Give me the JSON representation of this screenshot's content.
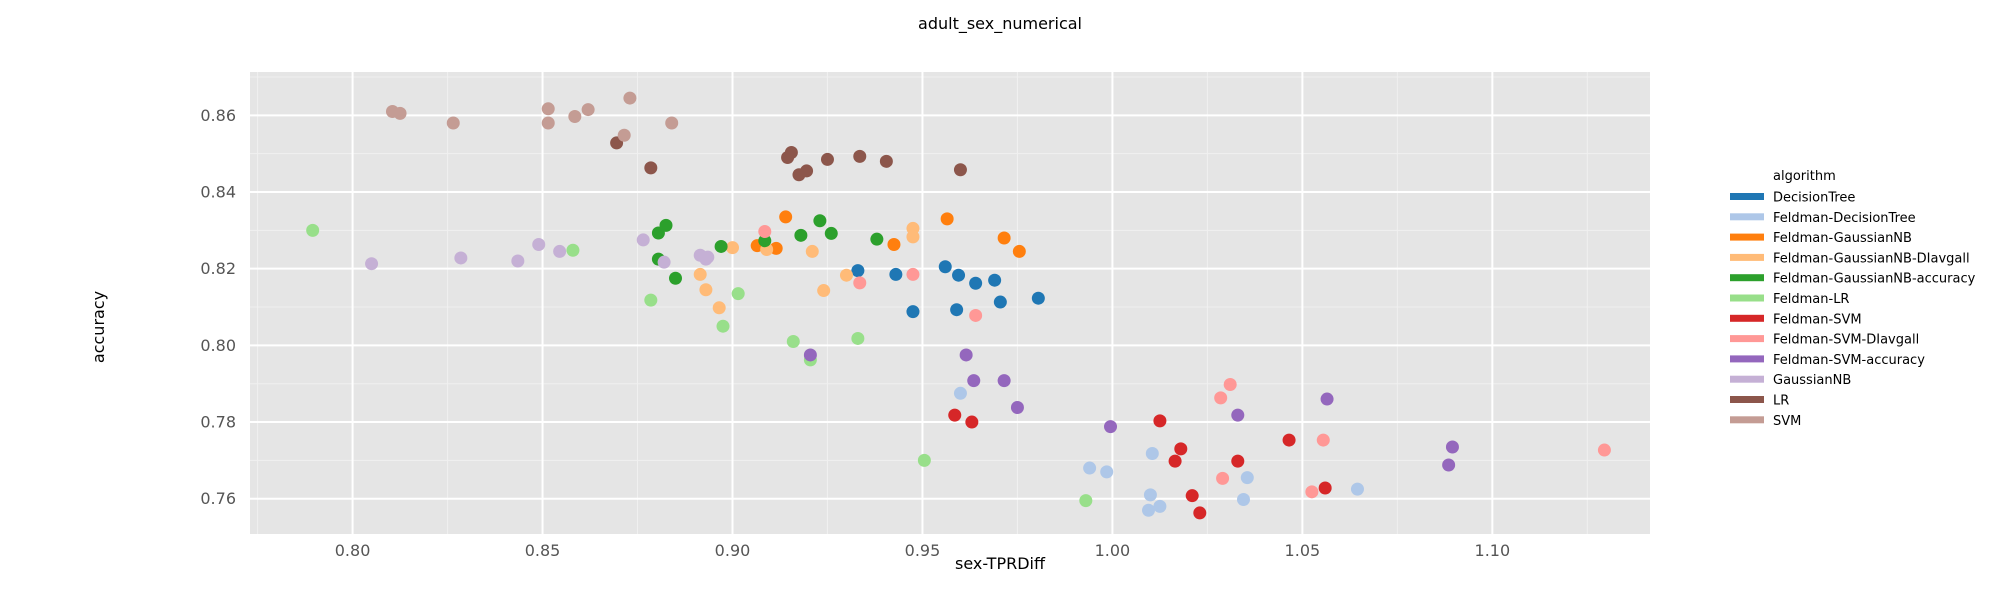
{
  "chart_data": {
    "type": "scatter",
    "title": "adult_sex_numerical",
    "xlabel": "sex-TPRDiff",
    "ylabel": "accuracy",
    "xlim": [
      0.773,
      1.1415
    ],
    "ylim": [
      0.7508,
      0.8713
    ],
    "xticks": [
      0.8,
      0.85,
      0.9,
      0.95,
      1.0,
      1.05,
      1.1
    ],
    "xtick_labels": [
      "0.80",
      "0.85",
      "0.90",
      "0.95",
      "1.00",
      "1.05",
      "1.10"
    ],
    "yticks": [
      0.76,
      0.78,
      0.8,
      0.82,
      0.84,
      0.86
    ],
    "ytick_labels": [
      "0.76",
      "0.78",
      "0.80",
      "0.82",
      "0.84",
      "0.86"
    ],
    "grid": true,
    "legend_title": "algorithm",
    "legend_position": "right",
    "series": [
      {
        "name": "DecisionTree",
        "color": "#1f77b4",
        "points": [
          [
            0.933,
            0.8195
          ],
          [
            0.943,
            0.8185
          ],
          [
            0.9475,
            0.8088
          ],
          [
            0.956,
            0.8205
          ],
          [
            0.959,
            0.8093
          ],
          [
            0.9595,
            0.8183
          ],
          [
            0.964,
            0.8162
          ],
          [
            0.969,
            0.817
          ],
          [
            0.9705,
            0.8113
          ],
          [
            0.9805,
            0.8123
          ]
        ]
      },
      {
        "name": "Feldman-DecisionTree",
        "color": "#aec7e8",
        "points": [
          [
            0.96,
            0.7875
          ],
          [
            0.994,
            0.768
          ],
          [
            0.9985,
            0.767
          ],
          [
            1.0095,
            0.757
          ],
          [
            1.01,
            0.761
          ],
          [
            1.0105,
            0.7718
          ],
          [
            1.0125,
            0.758
          ],
          [
            1.0345,
            0.7598
          ],
          [
            1.0355,
            0.7655
          ],
          [
            1.0645,
            0.7625
          ]
        ]
      },
      {
        "name": "Feldman-GaussianNB",
        "color": "#ff7f0e",
        "points": [
          [
            0.9065,
            0.826
          ],
          [
            0.9115,
            0.8253
          ],
          [
            0.914,
            0.8335
          ],
          [
            0.9425,
            0.8263
          ],
          [
            0.9565,
            0.833
          ],
          [
            0.9715,
            0.828
          ],
          [
            0.9755,
            0.8245
          ]
        ]
      },
      {
        "name": "Feldman-GaussianNB-DIavgall",
        "color": "#ffbb78",
        "points": [
          [
            0.8915,
            0.8185
          ],
          [
            0.893,
            0.8145
          ],
          [
            0.8965,
            0.8098
          ],
          [
            0.9,
            0.8255
          ],
          [
            0.909,
            0.825
          ],
          [
            0.921,
            0.8245
          ],
          [
            0.924,
            0.8143
          ],
          [
            0.93,
            0.8183
          ],
          [
            0.9475,
            0.8283
          ],
          [
            0.9475,
            0.8305
          ]
        ]
      },
      {
        "name": "Feldman-GaussianNB-accuracy",
        "color": "#2ca02c",
        "points": [
          [
            0.8805,
            0.8225
          ],
          [
            0.8805,
            0.8293
          ],
          [
            0.8825,
            0.8313
          ],
          [
            0.885,
            0.8175
          ],
          [
            0.897,
            0.8258
          ],
          [
            0.9085,
            0.8273
          ],
          [
            0.918,
            0.8287
          ],
          [
            0.923,
            0.8325
          ],
          [
            0.926,
            0.8292
          ],
          [
            0.938,
            0.8277
          ]
        ]
      },
      {
        "name": "Feldman-LR",
        "color": "#98df8a",
        "points": [
          [
            0.7895,
            0.83
          ],
          [
            0.858,
            0.8248
          ],
          [
            0.8785,
            0.8118
          ],
          [
            0.8975,
            0.805
          ],
          [
            0.9015,
            0.8135
          ],
          [
            0.916,
            0.801
          ],
          [
            0.9205,
            0.7962
          ],
          [
            0.933,
            0.8018
          ],
          [
            0.9505,
            0.77
          ],
          [
            0.993,
            0.7595
          ]
        ]
      },
      {
        "name": "Feldman-SVM",
        "color": "#d62728",
        "points": [
          [
            0.9585,
            0.7818
          ],
          [
            0.963,
            0.78
          ],
          [
            1.0125,
            0.7803
          ],
          [
            1.0165,
            0.7698
          ],
          [
            1.018,
            0.773
          ],
          [
            1.021,
            0.7608
          ],
          [
            1.023,
            0.7563
          ],
          [
            1.033,
            0.7698
          ],
          [
            1.0465,
            0.7753
          ],
          [
            1.056,
            0.7628
          ]
        ]
      },
      {
        "name": "Feldman-SVM-DIavgall",
        "color": "#ff9896",
        "points": [
          [
            0.9085,
            0.8297
          ],
          [
            0.9335,
            0.8163
          ],
          [
            0.9475,
            0.8185
          ],
          [
            0.964,
            0.8078
          ],
          [
            1.0285,
            0.7863
          ],
          [
            1.029,
            0.7653
          ],
          [
            1.031,
            0.7898
          ],
          [
            1.0525,
            0.7618
          ],
          [
            1.0555,
            0.7753
          ],
          [
            1.1295,
            0.7727
          ]
        ]
      },
      {
        "name": "Feldman-SVM-accuracy",
        "color": "#9467bd",
        "points": [
          [
            0.9205,
            0.7975
          ],
          [
            0.9615,
            0.7975
          ],
          [
            0.9635,
            0.7908
          ],
          [
            0.9715,
            0.7908
          ],
          [
            0.975,
            0.7838
          ],
          [
            0.9995,
            0.7788
          ],
          [
            1.033,
            0.7818
          ],
          [
            1.0565,
            0.786
          ],
          [
            1.0885,
            0.7688
          ],
          [
            1.0895,
            0.7735
          ]
        ]
      },
      {
        "name": "GaussianNB",
        "color": "#c5b0d5",
        "points": [
          [
            0.805,
            0.8213
          ],
          [
            0.8285,
            0.8228
          ],
          [
            0.8435,
            0.822
          ],
          [
            0.849,
            0.8263
          ],
          [
            0.8545,
            0.8245
          ],
          [
            0.8765,
            0.8275
          ],
          [
            0.882,
            0.8217
          ],
          [
            0.8915,
            0.8235
          ],
          [
            0.893,
            0.8225
          ],
          [
            0.8935,
            0.823
          ]
        ]
      },
      {
        "name": "LR",
        "color": "#8c564b",
        "points": [
          [
            0.8695,
            0.8528
          ],
          [
            0.8785,
            0.8463
          ],
          [
            0.9145,
            0.849
          ],
          [
            0.9155,
            0.8503
          ],
          [
            0.9175,
            0.8445
          ],
          [
            0.9195,
            0.8455
          ],
          [
            0.925,
            0.8485
          ],
          [
            0.9335,
            0.8493
          ],
          [
            0.9405,
            0.848
          ],
          [
            0.96,
            0.8458
          ]
        ]
      },
      {
        "name": "SVM",
        "color": "#c49c94",
        "points": [
          [
            0.8105,
            0.861
          ],
          [
            0.8125,
            0.8605
          ],
          [
            0.8265,
            0.858
          ],
          [
            0.8515,
            0.8617
          ],
          [
            0.8515,
            0.858
          ],
          [
            0.8585,
            0.8597
          ],
          [
            0.862,
            0.8615
          ],
          [
            0.8715,
            0.8548
          ],
          [
            0.873,
            0.8645
          ],
          [
            0.884,
            0.858
          ]
        ]
      }
    ]
  }
}
